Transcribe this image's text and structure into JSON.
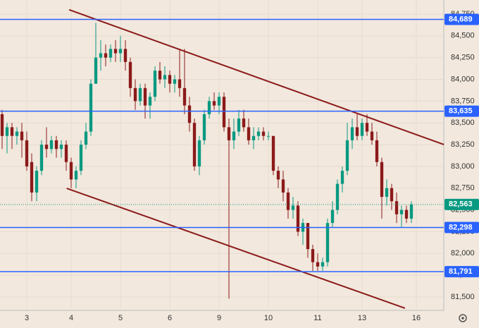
{
  "chart_data": {
    "type": "candlestick",
    "open": [
      83600,
      83350,
      83450,
      83350,
      83400,
      83300,
      83050,
      82700,
      82950,
      83250,
      83200,
      83300,
      83200,
      83250,
      83050,
      82850,
      82950,
      83250,
      83400,
      83950,
      84250,
      84300,
      84250,
      84350,
      84300,
      84350,
      84200,
      83900,
      83750,
      83900,
      83700,
      83800,
      84100,
      84000,
      84050,
      83950,
      84000,
      83900,
      83700,
      83500,
      83000,
      83300,
      83600,
      83750,
      83700,
      83800,
      83450,
      83300,
      83400,
      83550,
      83450,
      83300,
      83350,
      83400,
      83350,
      83350,
      82950,
      82850,
      82700,
      82500,
      82550,
      82250,
      82350,
      82050,
      81900,
      81850,
      81900,
      82350,
      82500,
      82800,
      82950,
      83300,
      83450,
      83350,
      83500,
      83400,
      83300,
      83050,
      82650,
      82750,
      82600,
      82450,
      82500,
      82400
    ],
    "high": [
      83650,
      83500,
      83500,
      83450,
      83500,
      83400,
      83150,
      83000,
      83300,
      83450,
      83350,
      83350,
      83300,
      83300,
      83100,
      83000,
      83300,
      83500,
      84000,
      84650,
      84450,
      84400,
      84400,
      84450,
      84500,
      84450,
      84250,
      84000,
      83950,
      83950,
      83850,
      84150,
      84200,
      84150,
      84100,
      84050,
      84350,
      84350,
      83800,
      83550,
      83350,
      83650,
      83800,
      83850,
      83850,
      83850,
      83550,
      83550,
      83650,
      83650,
      83550,
      83450,
      83450,
      83450,
      83400,
      83350,
      83000,
      82950,
      82750,
      82650,
      82600,
      82400,
      82350,
      82100,
      82000,
      81950,
      82400,
      82600,
      82850,
      83000,
      83500,
      83550,
      83600,
      83550,
      83600,
      83500,
      83400,
      83100,
      82850,
      82800,
      82700,
      82550,
      82550,
      82600
    ],
    "low": [
      83200,
      83150,
      83200,
      83250,
      83100,
      82950,
      82600,
      82600,
      82900,
      83100,
      83150,
      83100,
      83100,
      82950,
      82750,
      82750,
      82900,
      83200,
      83350,
      83950,
      84100,
      84150,
      84200,
      84200,
      84200,
      84100,
      83800,
      83650,
      83700,
      83550,
      83550,
      83750,
      83950,
      83900,
      83850,
      83850,
      83800,
      83600,
      83400,
      82950,
      82900,
      83250,
      83550,
      83650,
      83600,
      83400,
      81480,
      83200,
      83350,
      83400,
      83250,
      83200,
      83300,
      83300,
      83300,
      82900,
      82750,
      82600,
      82400,
      82400,
      82200,
      82100,
      81950,
      81800,
      81800,
      81800,
      81850,
      82300,
      82450,
      82700,
      82900,
      83200,
      83300,
      83300,
      83350,
      83250,
      83000,
      82400,
      82550,
      82500,
      82350,
      82300,
      82350,
      82350
    ],
    "close": [
      83350,
      83450,
      83350,
      83400,
      83300,
      83000,
      82700,
      82950,
      83250,
      83200,
      83300,
      83200,
      83250,
      83050,
      82850,
      82950,
      83250,
      83400,
      83950,
      84250,
      84300,
      84250,
      84350,
      84300,
      84350,
      84200,
      83900,
      83750,
      83900,
      83700,
      83800,
      84100,
      84000,
      84050,
      83950,
      84000,
      83900,
      83700,
      83500,
      83000,
      83300,
      83600,
      83750,
      83700,
      83800,
      83450,
      83300,
      83400,
      83550,
      83450,
      83300,
      83350,
      83400,
      83350,
      83350,
      82950,
      82850,
      82700,
      82500,
      82550,
      82250,
      82350,
      82050,
      81900,
      81850,
      81900,
      82350,
      82500,
      82800,
      82950,
      83300,
      83450,
      83350,
      83500,
      83400,
      83300,
      83050,
      82650,
      82750,
      82600,
      82450,
      82500,
      82400,
      82563
    ],
    "up_color": "#089981",
    "down_color": "#8b1a1a",
    "xlim": [
      -0.43,
      89.57
    ],
    "ylim": [
      81346,
      84912
    ],
    "xticks": [
      {
        "value": 5,
        "label": "3"
      },
      {
        "value": 14,
        "label": "4"
      },
      {
        "value": 24,
        "label": "5"
      },
      {
        "value": 34,
        "label": "6"
      },
      {
        "value": 44,
        "label": "9"
      },
      {
        "value": 54,
        "label": "10"
      },
      {
        "value": 64,
        "label": "11"
      },
      {
        "value": 73,
        "label": "13"
      },
      {
        "value": 84,
        "label": "16"
      }
    ],
    "yticks": [
      {
        "value": 81500,
        "label": "81,500"
      },
      {
        "value": 81750,
        "label": "81,750"
      },
      {
        "value": 82000,
        "label": "82,000"
      },
      {
        "value": 82250,
        "label": "82,250"
      },
      {
        "value": 82500,
        "label": "82,500"
      },
      {
        "value": 82750,
        "label": "82,750"
      },
      {
        "value": 83000,
        "label": "83,000"
      },
      {
        "value": 83250,
        "label": "83,250"
      },
      {
        "value": 83500,
        "label": "83,500"
      },
      {
        "value": 83750,
        "label": "83,750"
      },
      {
        "value": 84000,
        "label": "84,000"
      },
      {
        "value": 84250,
        "label": "84,250"
      },
      {
        "value": 84500,
        "label": "84,500"
      },
      {
        "value": 84750,
        "label": "84,750"
      }
    ],
    "levels": [
      {
        "value": 84689,
        "label": "84,689"
      },
      {
        "value": 83635,
        "label": "83,635"
      },
      {
        "value": 82298,
        "label": "82,298"
      },
      {
        "value": 81791,
        "label": "81,791"
      }
    ],
    "level_color": "#2962ff",
    "last_price": {
      "value": 82563,
      "label": "82,563"
    },
    "trendlines": [
      {
        "x": [
          13.6,
          89.6
        ],
        "y": [
          84800,
          83251
        ]
      },
      {
        "x": [
          13.1,
          81.7
        ],
        "y": [
          82748,
          81371
        ]
      }
    ],
    "trendline_color": "#8b1a1a",
    "grid": true
  }
}
